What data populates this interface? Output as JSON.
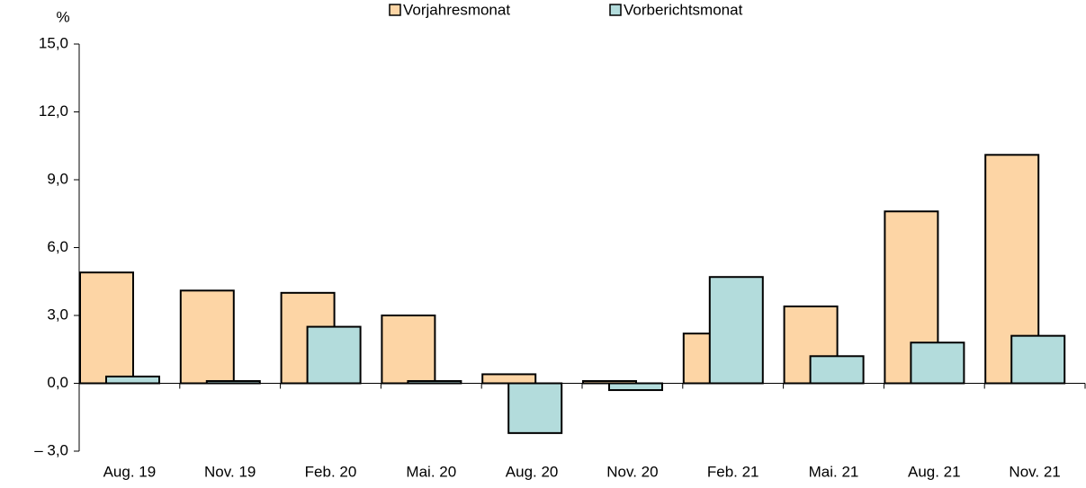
{
  "chart_data": {
    "type": "bar",
    "y_unit": "%",
    "categories": [
      "Aug. 19",
      "Nov. 19",
      "Feb. 20",
      "Mai. 20",
      "Aug. 20",
      "Nov. 20",
      "Feb. 21",
      "Mai. 21",
      "Aug. 21",
      "Nov. 21"
    ],
    "series": [
      {
        "name": "Vorjahresmonat",
        "color": "#fdd5a5",
        "values": [
          4.9,
          4.1,
          4.0,
          3.0,
          0.4,
          0.1,
          2.2,
          3.4,
          7.6,
          10.1
        ]
      },
      {
        "name": "Vorberichtsmonat",
        "color": "#b3dcdc",
        "values": [
          0.3,
          0.1,
          2.5,
          0.1,
          -2.2,
          -0.3,
          4.7,
          1.2,
          1.8,
          2.1
        ]
      }
    ],
    "ylim": [
      -3,
      15
    ],
    "yticks": [
      {
        "value": -3,
        "label": "– 3,0"
      },
      {
        "value": 0,
        "label": "0,0"
      },
      {
        "value": 3,
        "label": "3,0"
      },
      {
        "value": 6,
        "label": "6,0"
      },
      {
        "value": 9,
        "label": "9,0"
      },
      {
        "value": 12,
        "label": "12,0"
      },
      {
        "value": 15,
        "label": "15,0"
      }
    ],
    "legend": "top"
  }
}
